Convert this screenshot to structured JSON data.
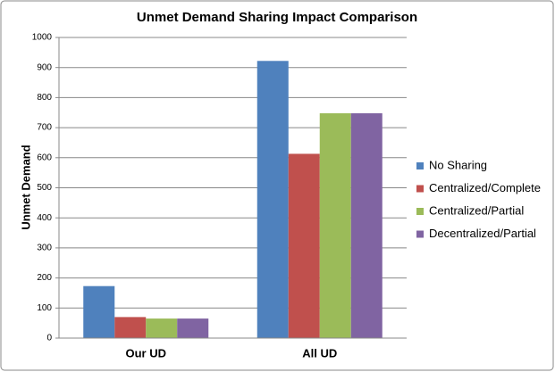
{
  "chart_data": {
    "type": "bar",
    "title": "Unmet Demand Sharing Impact Comparison",
    "y_label": "Unmet Demand",
    "categories": [
      "Our UD",
      "All UD"
    ],
    "series": [
      {
        "name": "No Sharing",
        "color": "#4f81bd",
        "values": [
          173,
          922
        ]
      },
      {
        "name": "Centralized/Complete",
        "color": "#c0504d",
        "values": [
          70,
          613
        ]
      },
      {
        "name": "Centralized/Partial",
        "color": "#9bbb59",
        "values": [
          65,
          748
        ]
      },
      {
        "name": "Decentralized/Partial",
        "color": "#8064a2",
        "values": [
          65,
          748
        ]
      }
    ],
    "ylim": [
      0,
      1000
    ],
    "yticks": [
      0,
      100,
      200,
      300,
      400,
      500,
      600,
      700,
      800,
      900,
      1000
    ],
    "grid": true,
    "legend": "right"
  }
}
